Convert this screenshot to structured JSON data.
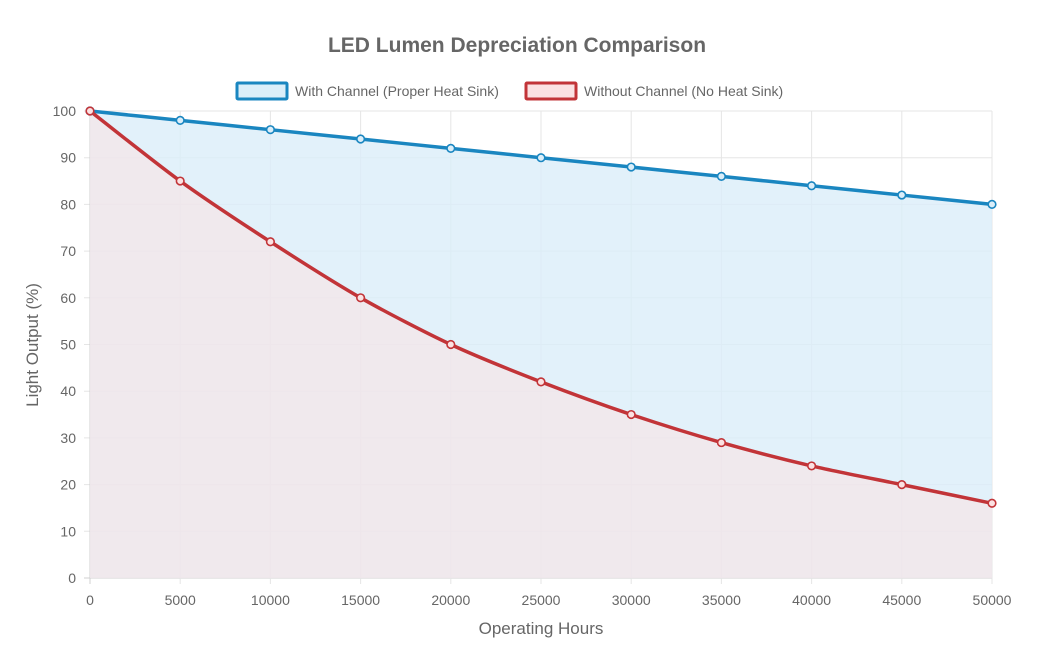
{
  "chart_data": {
    "type": "line",
    "title": "LED Lumen Depreciation Comparison",
    "xlabel": "Operating Hours",
    "ylabel": "Light Output (%)",
    "x": [
      0,
      5000,
      10000,
      15000,
      20000,
      25000,
      30000,
      35000,
      40000,
      45000,
      50000
    ],
    "x_tick_labels": [
      "0",
      "5000",
      "10000",
      "15000",
      "20000",
      "25000",
      "30000",
      "35000",
      "40000",
      "45000",
      "50000"
    ],
    "y_ticks": [
      0,
      10,
      20,
      30,
      40,
      50,
      60,
      70,
      80,
      90,
      100
    ],
    "y_tick_labels": [
      "0",
      "10",
      "20",
      "30",
      "40",
      "50",
      "60",
      "70",
      "80",
      "90",
      "100"
    ],
    "xlim": [
      0,
      50000
    ],
    "ylim": [
      0,
      100
    ],
    "grid": true,
    "legend_position": "top-center",
    "series": [
      {
        "name": "With Channel (Proper Heat Sink)",
        "values": [
          100,
          98,
          96,
          94,
          92,
          90,
          88,
          86,
          84,
          82,
          80
        ],
        "color": "#1a86c0",
        "fill": "#dbeef9",
        "filled": true
      },
      {
        "name": "Without Channel (No Heat Sink)",
        "values": [
          100,
          85,
          72,
          60,
          50,
          42,
          35,
          29,
          24,
          20,
          16
        ],
        "color": "#c23438",
        "fill": "#fbe1e2",
        "filled": true
      }
    ]
  }
}
